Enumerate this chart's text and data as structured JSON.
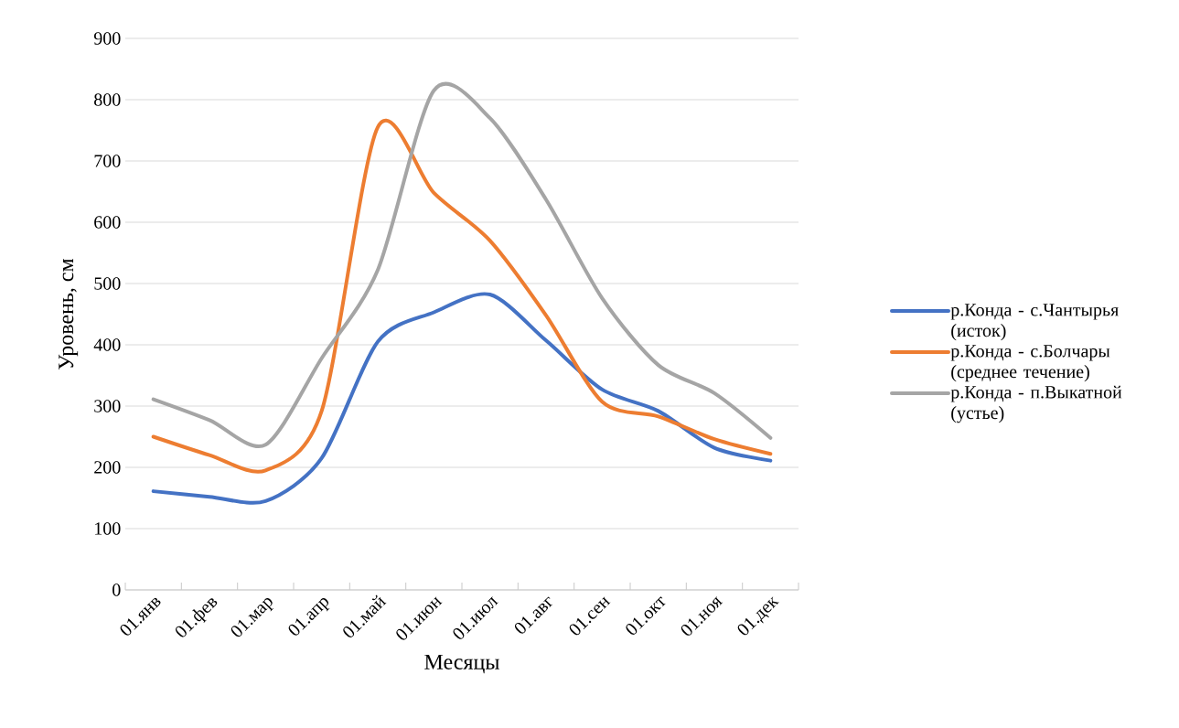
{
  "chart_data": {
    "type": "line",
    "xlabel": "Месяцы",
    "ylabel": "Уровень, см",
    "categories": [
      "01.янв",
      "01.фев",
      "01.мар",
      "01.апр",
      "01.май",
      "01.июн",
      "01.июл",
      "01.авг",
      "01.сен",
      "01.окт",
      "01.ноя",
      "01.дек"
    ],
    "series": [
      {
        "name": "р.Конда - с.Чантырья (исток)",
        "color": "#4472c4",
        "values": [
          161,
          152,
          145,
          215,
          405,
          453,
          482,
          407,
          327,
          292,
          232,
          211
        ]
      },
      {
        "name": "р.Конда - с.Болчары (среднее течение)",
        "color": "#ed7d31",
        "values": [
          250,
          220,
          195,
          292,
          755,
          648,
          570,
          448,
          307,
          283,
          246,
          222
        ]
      },
      {
        "name": "р.Конда - п.Выкатной (устье)",
        "color": "#a5a5a5",
        "values": [
          311,
          277,
          237,
          378,
          522,
          815,
          770,
          637,
          476,
          367,
          321,
          248
        ]
      }
    ],
    "ylim": [
      0,
      900
    ],
    "yticks": [
      0,
      100,
      200,
      300,
      400,
      500,
      600,
      700,
      800,
      900
    ],
    "grid": "y",
    "legend": "right",
    "marker": "none",
    "line_style": "solid"
  }
}
